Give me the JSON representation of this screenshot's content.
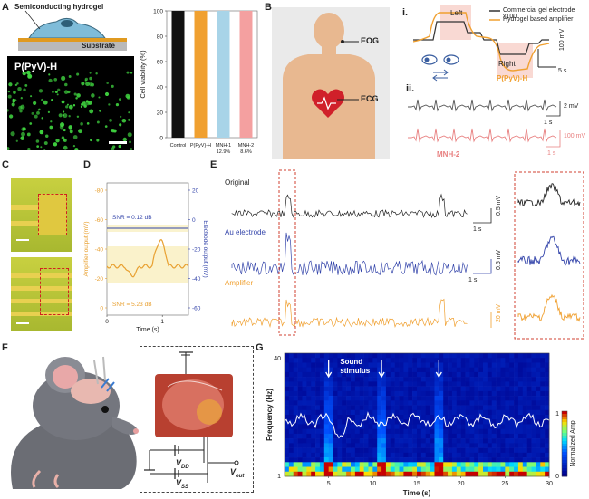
{
  "panels": {
    "a": "A",
    "b": "B",
    "c": "C",
    "d": "D",
    "e": "E",
    "f": "F",
    "g": "G"
  },
  "panel_a": {
    "schematic_top": "Semiconducting hydrogel",
    "schematic_bottom": "Substrate",
    "micro_label": "P(PyV)-H",
    "colors": {
      "cells": "#3fd23f",
      "scale": "#ffffff"
    }
  },
  "panel_b": {
    "eog_label": "EOG",
    "ecg_label": "ECG",
    "sub_i": "i.",
    "sub_ii": "ii.",
    "legend_commercial": "Commercial gel electrode x100",
    "legend_hydrogel": "Hydrogel based amplifier",
    "left_label": "Left",
    "right_label": "Right",
    "scale_100mv": "100 mV",
    "scale_5s": "5 s",
    "pyvh_label": "P(PyV)-H",
    "scale_2mv": "2 mV",
    "scale_1s_a": "1 s",
    "scale_100mv_b": "100 mV",
    "scale_1s_b": "1 s",
    "mnh_label": "MNH-2",
    "colors": {
      "commercial": "#333333",
      "hydrogel": "#f0a030",
      "ecg_black": "#555555",
      "ecg_pink": "#e88080"
    }
  },
  "panel_e": {
    "original": "Original",
    "au": "Au electrode",
    "amplifier": "Amplifier",
    "scale_05a": "0.5 mV",
    "scale_05b": "0.5 mV",
    "scale_20": "20 mV",
    "scale_1s_a": "1 s",
    "scale_1s_b": "1 s",
    "colors": {
      "original": "#222222",
      "au": "#3344aa",
      "amp": "#f0a030",
      "box": "#d04030"
    }
  },
  "panel_f": {
    "vdd": "V",
    "vdd_sub": "DD",
    "vss": "V",
    "vss_sub": "SS",
    "vout": "V",
    "vout_sub": "out"
  },
  "chart_data": [
    {
      "type": "bar",
      "categories": [
        "Control",
        "P(PyV)-H",
        "MNH-1 12.9%",
        "MNH-2 8.6%"
      ],
      "values": [
        100,
        100,
        100,
        100
      ],
      "colors": [
        "#111111",
        "#f0a030",
        "#a8d4e8",
        "#f4a0a0"
      ],
      "ylabel": "Cell viability (%)",
      "ylim": [
        0,
        100
      ],
      "yticks": [
        "0",
        "20",
        "40",
        "60",
        "80",
        "100"
      ]
    },
    {
      "type": "line",
      "series": [
        {
          "name": "SNR = 0.12 dB",
          "color": "#3344aa"
        },
        {
          "name": "SNR = 5.23 dB",
          "color": "#e8a030"
        }
      ],
      "xlabel": "Time (s)",
      "ylabel_left": "Amplifier output (mV)",
      "ylabel_right": "Electrode output (mV)",
      "left_ticks": [
        "-80",
        "-60",
        "-40",
        "-20",
        "0"
      ],
      "right_ticks": [
        "-60",
        "-40",
        "-20",
        "0",
        "20"
      ],
      "xticks": [
        "0",
        "1"
      ]
    },
    {
      "type": "heatmap",
      "xlabel": "Time (s)",
      "ylabel": "Frequency (Hz)",
      "xticks": [
        "5",
        "10",
        "15",
        "20",
        "25",
        "30"
      ],
      "yticks": [
        "40",
        "1"
      ],
      "annotation": "Sound stimulus",
      "stimulus_times": [
        5,
        11,
        17.5
      ],
      "colorbar_label": "Normalized Amp",
      "colorbar_ticks": [
        "1",
        "0"
      ]
    }
  ]
}
